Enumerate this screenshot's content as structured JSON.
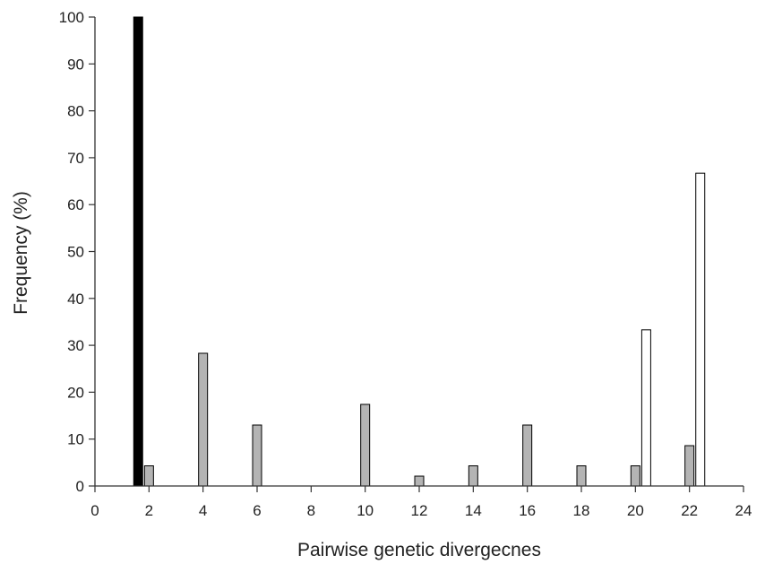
{
  "chart_data": {
    "type": "bar",
    "title": "",
    "xlabel": "Pairwise genetic divergecnes",
    "ylabel": "Frequency (%)",
    "xlim": [
      0,
      24
    ],
    "ylim": [
      0,
      100
    ],
    "xticks": [
      0,
      2,
      4,
      6,
      8,
      10,
      12,
      14,
      16,
      18,
      20,
      22,
      24
    ],
    "yticks": [
      0,
      10,
      20,
      30,
      40,
      50,
      60,
      70,
      80,
      90,
      100
    ],
    "grid": false,
    "legend": "none",
    "series": [
      {
        "color": "#000000",
        "points": [
          {
            "x": 1.6,
            "y": 100
          }
        ]
      },
      {
        "color": "#b4b4b4",
        "points": [
          {
            "x": 2,
            "y": 4.3
          },
          {
            "x": 4,
            "y": 28.3
          },
          {
            "x": 6,
            "y": 13
          },
          {
            "x": 10,
            "y": 17.4
          },
          {
            "x": 12,
            "y": 2.1
          },
          {
            "x": 14,
            "y": 4.3
          },
          {
            "x": 16,
            "y": 13
          },
          {
            "x": 18,
            "y": 4.3
          },
          {
            "x": 20,
            "y": 4.3
          },
          {
            "x": 22,
            "y": 8.6
          }
        ]
      },
      {
        "color": "#ffffff",
        "points": [
          {
            "x": 20.4,
            "y": 33.3
          },
          {
            "x": 22.4,
            "y": 66.7
          }
        ]
      }
    ]
  }
}
